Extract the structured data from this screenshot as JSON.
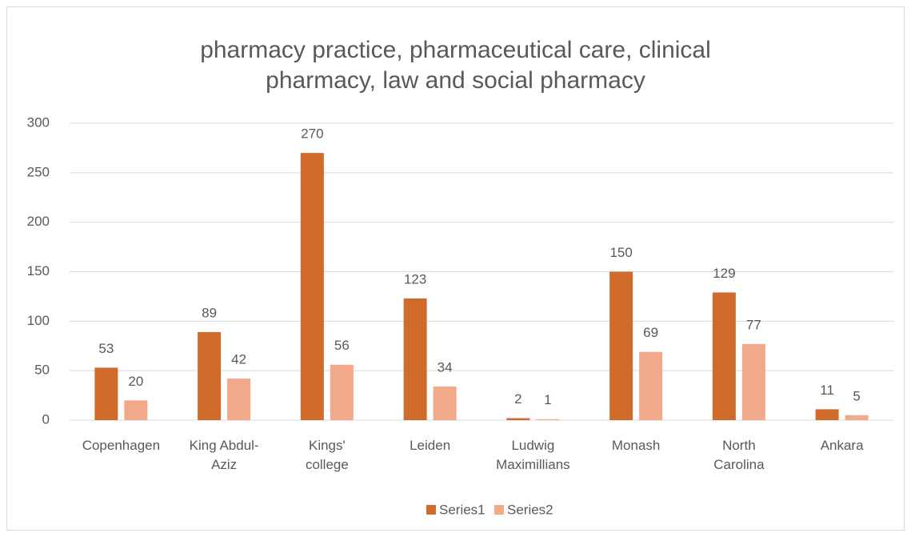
{
  "chart_data": {
    "type": "bar",
    "title": "pharmacy practice, pharmaceutical care, clinical pharmacy, law and social pharmacy",
    "categories": [
      "Copenhagen",
      "King Abdul-Aziz",
      "Kings' college",
      "Leiden",
      "Ludwig Maximillians",
      "Monash",
      "North Carolina",
      "Ankara"
    ],
    "series": [
      {
        "name": "Series1",
        "color": "#d06b2b",
        "values": [
          53,
          89,
          270,
          123,
          2,
          150,
          129,
          11
        ]
      },
      {
        "name": "Series2",
        "color": "#f2a98a",
        "values": [
          20,
          42,
          56,
          34,
          1,
          69,
          77,
          5
        ]
      }
    ],
    "ylim": [
      0,
      300
    ],
    "yticks": [
      0,
      50,
      100,
      150,
      200,
      250,
      300
    ],
    "grid": true,
    "legend": "bottom"
  }
}
